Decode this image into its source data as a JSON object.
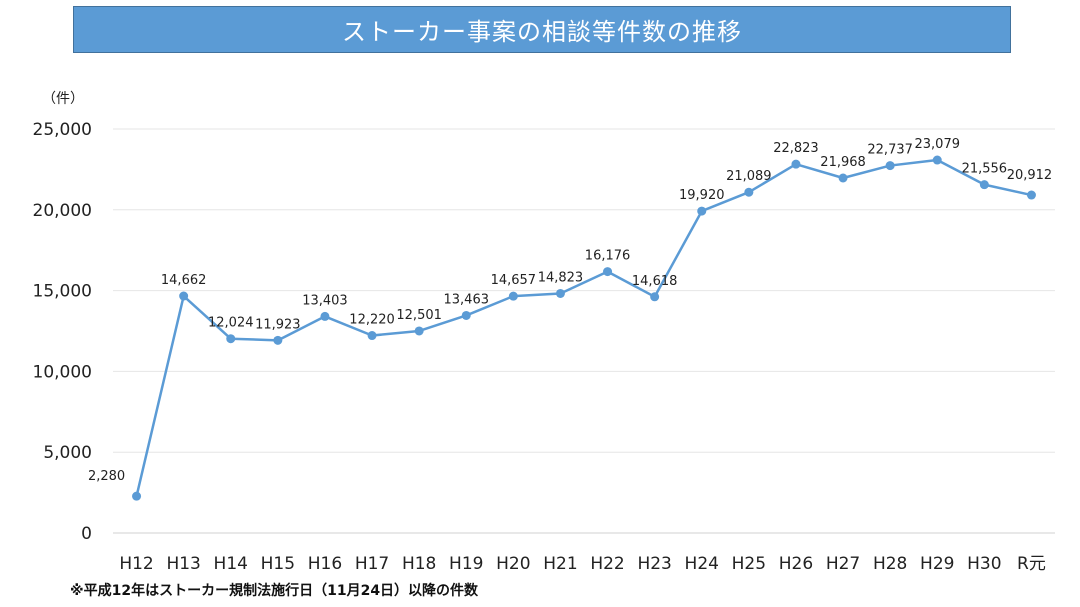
{
  "title": "ストーカー事案の相談等件数の推移",
  "unit_label": "（件）",
  "footnote": "※平成12年はストーカー規制法施行日（11月24日）以降の件数",
  "colors": {
    "banner": "#5b9bd5",
    "line": "#5b9bd5",
    "grid": "#e6e6e6"
  },
  "chart_data": {
    "type": "line",
    "title": "ストーカー事案の相談等件数の推移",
    "ylabel": "（件）",
    "xlabel": "",
    "ylim": [
      0,
      25000
    ],
    "y_ticks": [
      {
        "value": 0,
        "label": "0"
      },
      {
        "value": 5000,
        "label": "5,000"
      },
      {
        "value": 10000,
        "label": "10,000"
      },
      {
        "value": 15000,
        "label": "15,000"
      },
      {
        "value": 20000,
        "label": "20,000"
      },
      {
        "value": 25000,
        "label": "25,000"
      }
    ],
    "grid": true,
    "categories": [
      "H12",
      "H13",
      "H14",
      "H15",
      "H16",
      "H17",
      "H18",
      "H19",
      "H20",
      "H21",
      "H22",
      "H23",
      "H24",
      "H25",
      "H26",
      "H27",
      "H28",
      "H29",
      "H30",
      "R元"
    ],
    "series": [
      {
        "values": [
          2280,
          14662,
          12024,
          11923,
          13403,
          12220,
          12501,
          13463,
          14657,
          14823,
          16176,
          14618,
          19920,
          21089,
          22823,
          21968,
          22737,
          23079,
          21556,
          20912
        ],
        "labels": [
          "2,280",
          "14,662",
          "12,024",
          "11,923",
          "13,403",
          "12,220",
          "12,501",
          "13,463",
          "14,657",
          "14,823",
          "16,176",
          "14,618",
          "19,920",
          "21,089",
          "22,823",
          "21,968",
          "22,737",
          "23,079",
          "21,556",
          "20,912"
        ]
      }
    ]
  }
}
